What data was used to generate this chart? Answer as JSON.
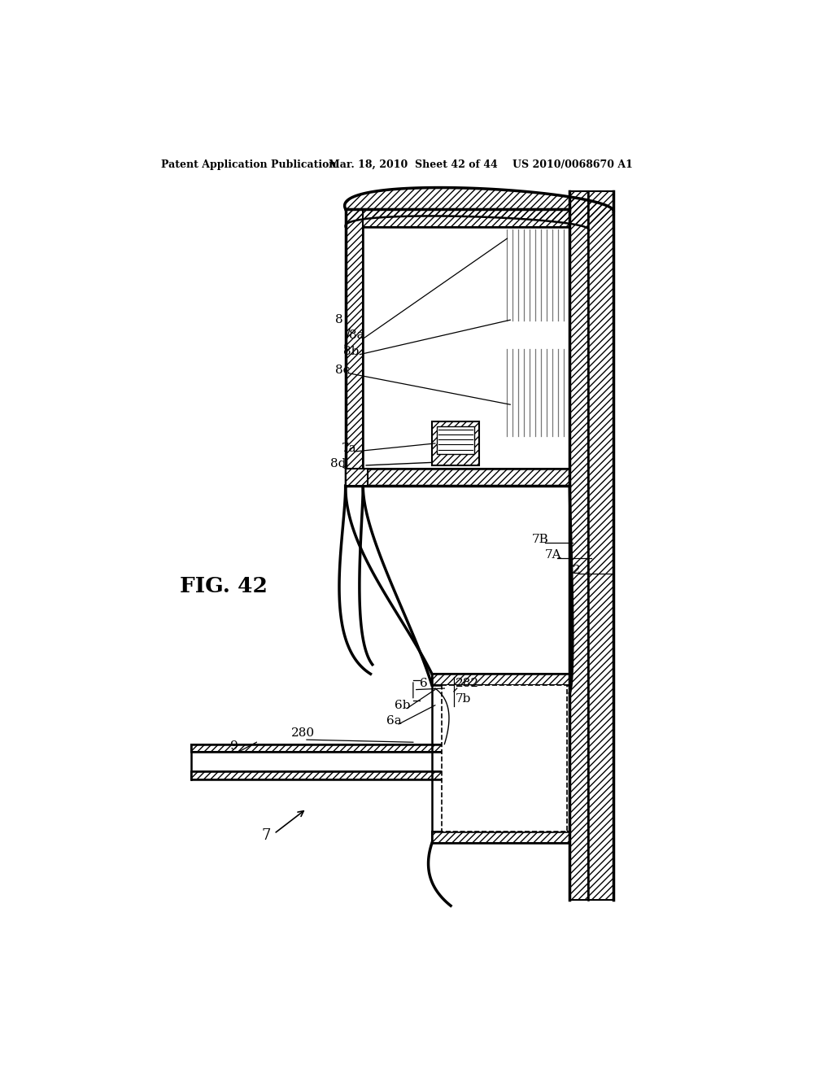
{
  "bg_color": "#ffffff",
  "line_color": "#000000",
  "header_left": "Patent Application Publication",
  "header_mid": "Mar. 18, 2010  Sheet 42 of 44",
  "header_right": "US 2010/0068670 A1",
  "fig_label": "FIG. 42"
}
